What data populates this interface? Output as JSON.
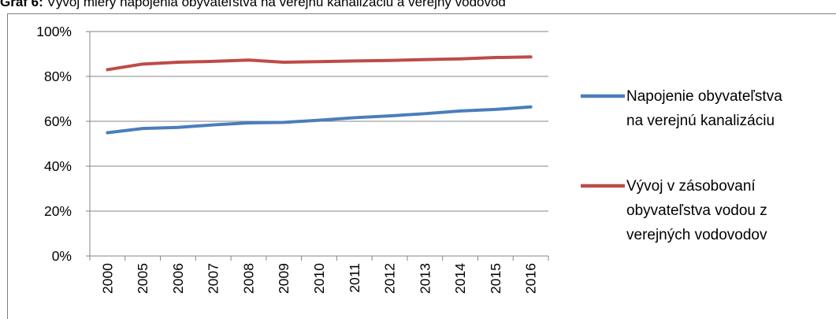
{
  "caption": {
    "prefix": "Graf 6",
    "text": "Vývoj miery napojenia obyvateľstva na verejnú kanalizáciu a verejný vodovod"
  },
  "chart_data": {
    "type": "line",
    "title": "",
    "xlabel": "",
    "ylabel": "",
    "categories": [
      "2000",
      "2005",
      "2006",
      "2007",
      "2008",
      "2009",
      "2010",
      "2011",
      "2012",
      "2013",
      "2014",
      "2015",
      "2016"
    ],
    "ylim": [
      0,
      100
    ],
    "y_ticks": [
      "0%",
      "20%",
      "40%",
      "60%",
      "80%",
      "100%"
    ],
    "grid": true,
    "legend_position": "right",
    "series": [
      {
        "name": "Napojenie obyvateľstva na verejnú kanalizáciu",
        "legend_lines": [
          "Napojenie obyvateľstva",
          "na verejnú kanalizáciu"
        ],
        "color": "#4a7ebb",
        "values": [
          54.9,
          56.8,
          57.3,
          58.4,
          59.3,
          59.5,
          60.5,
          61.6,
          62.4,
          63.4,
          64.6,
          65.3,
          66.4
        ]
      },
      {
        "name": "Vývoj v zásobovaní obyvateľstva vodou z verejných vodovodov",
        "legend_lines": [
          "Vývoj v zásobovaní",
          "obyvateľstva vodou z",
          "verejných vodovodov"
        ],
        "color": "#be4b48",
        "values": [
          83.0,
          85.5,
          86.3,
          86.7,
          87.3,
          86.3,
          86.6,
          86.9,
          87.1,
          87.5,
          87.8,
          88.4,
          88.7
        ]
      }
    ]
  }
}
